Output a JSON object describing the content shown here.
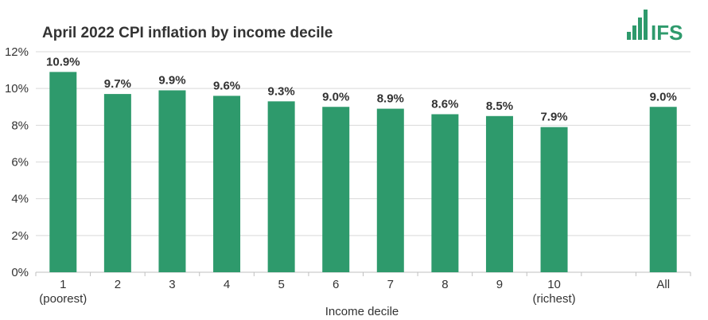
{
  "chart_data": {
    "type": "bar",
    "title": "April 2022 CPI inflation by income decile",
    "xlabel": "Income decile",
    "ylabel": "",
    "categories": [
      "1",
      "2",
      "3",
      "4",
      "5",
      "6",
      "7",
      "8",
      "9",
      "10",
      "",
      "All"
    ],
    "category_sublabels": [
      "(poorest)",
      "",
      "",
      "",
      "",
      "",
      "",
      "",
      "",
      "(richest)",
      "",
      ""
    ],
    "values": [
      10.9,
      9.7,
      9.9,
      9.6,
      9.3,
      9.0,
      8.9,
      8.6,
      8.5,
      7.9,
      null,
      9.0
    ],
    "data_labels": [
      "10.9%",
      "9.7%",
      "9.9%",
      "9.6%",
      "9.3%",
      "9.0%",
      "8.9%",
      "8.6%",
      "8.5%",
      "7.9%",
      "",
      "9.0%"
    ],
    "ylim": [
      0,
      12
    ],
    "yticks": [
      0,
      2,
      4,
      6,
      8,
      10,
      12
    ],
    "ytick_labels": [
      "0%",
      "2%",
      "4%",
      "6%",
      "8%",
      "10%",
      "12%"
    ],
    "grid": true,
    "legend": "none",
    "bar_color": "#2e9a6c",
    "grid_color": "#d9d9d9"
  },
  "logo": {
    "text": "IFS",
    "color": "#2e9a6c",
    "icon": "bar-chart-icon"
  }
}
